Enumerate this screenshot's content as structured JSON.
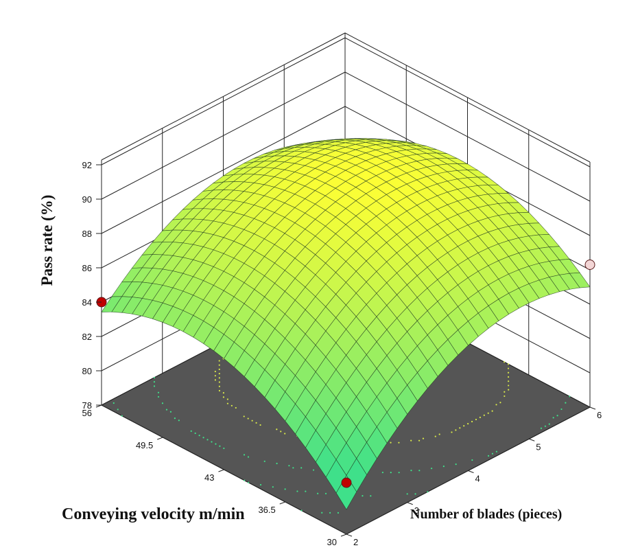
{
  "chart_data": {
    "type": "surface3d",
    "zlabel": "Pass rate (%)",
    "xlabel": "Number of blades (pieces)",
    "ylabel": "Conveying velocity m/min",
    "x_ticks": [
      "2",
      "3",
      "4",
      "5",
      "6"
    ],
    "y_ticks": [
      "30",
      "36.5",
      "43",
      "49.5",
      "56"
    ],
    "z_ticks": [
      "78",
      "80",
      "82",
      "84",
      "86",
      "88",
      "90",
      "92"
    ],
    "xlim": [
      2,
      6
    ],
    "ylim": [
      30,
      56
    ],
    "zlim": [
      78,
      92
    ],
    "grid": true,
    "surface_model": {
      "description_free": true,
      "corners": {
        "x2_y30": 79.2,
        "x6_y30": 86.3,
        "x2_y56": 84.0,
        "x6_y56": 86.6
      },
      "peak": {
        "x": 4.6,
        "y": 45.0,
        "z": 89.9
      }
    },
    "design_points": [
      {
        "x": 2,
        "y": 30,
        "z": 81.0,
        "color": "#c00000"
      },
      {
        "x": 2,
        "y": 56,
        "z": 84.0,
        "color": "#c00000"
      },
      {
        "x": 6,
        "y": 30,
        "z": 86.3,
        "color": "#f3d6d6"
      }
    ],
    "contour_levels": [
      82,
      84,
      86,
      88
    ],
    "colors": {
      "floor": "#555555",
      "surface_low": "#3fe08a",
      "surface_high": "#ffff33",
      "grid": "#222222"
    }
  }
}
